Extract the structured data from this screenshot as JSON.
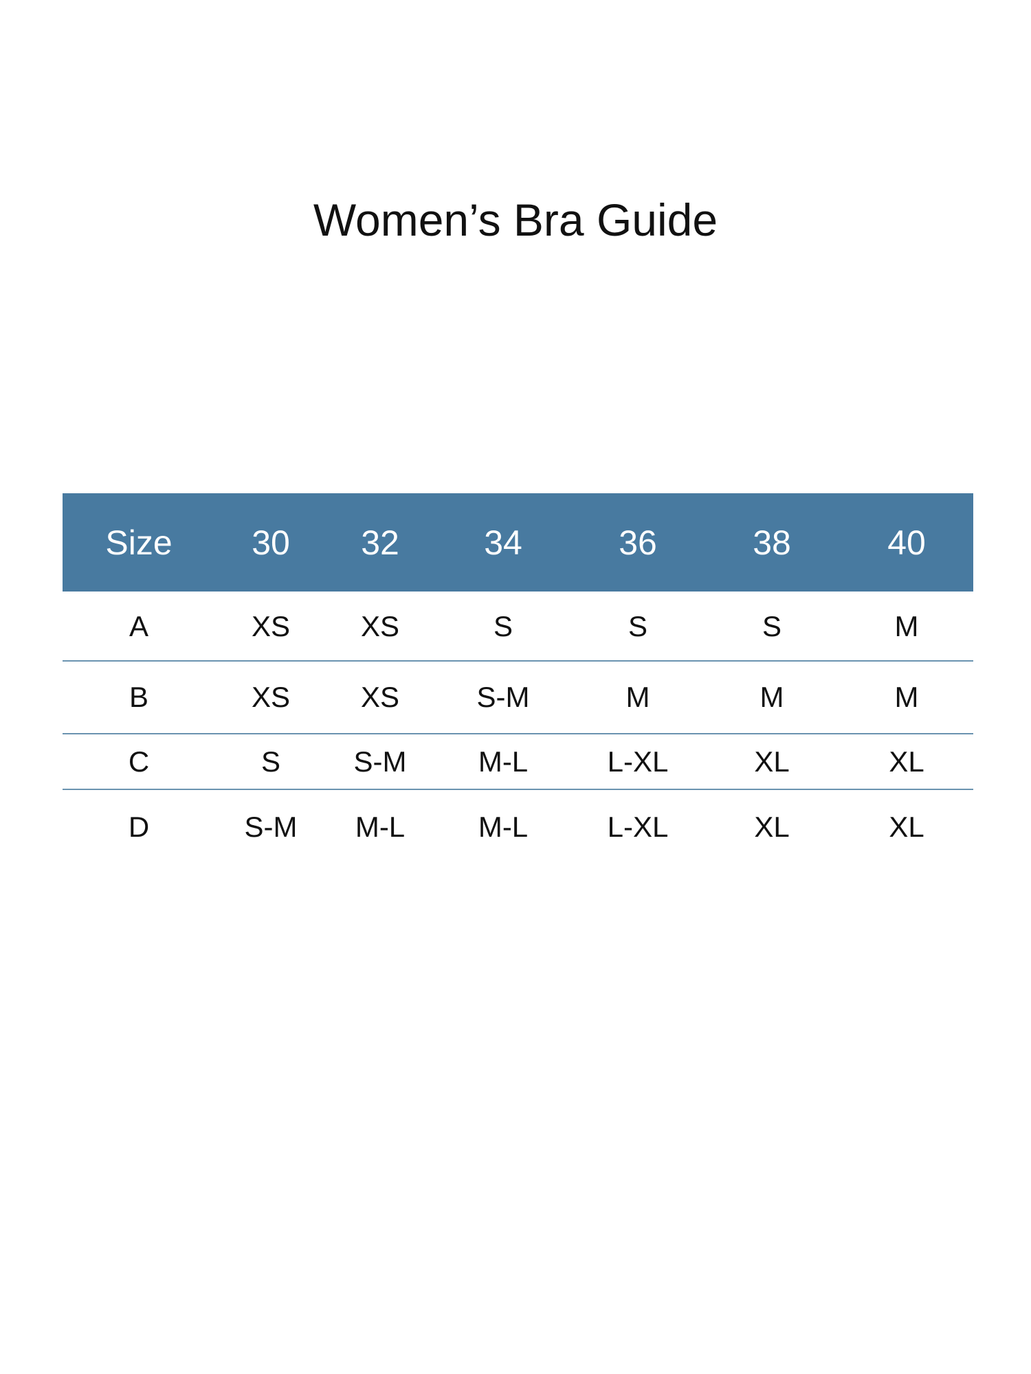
{
  "title": "Women’s Bra Guide",
  "colors": {
    "header_bg": "#487aa0",
    "divider": "#6a93b0",
    "header_text": "#ffffff"
  },
  "table": {
    "headers": [
      "Size",
      "30",
      "32",
      "34",
      "36",
      "38",
      "40"
    ],
    "rows": [
      [
        "A",
        "XS",
        "XS",
        "S",
        "S",
        "S",
        "M"
      ],
      [
        "B",
        "XS",
        "XS",
        "S-M",
        "M",
        "M",
        "M"
      ],
      [
        "C",
        "S",
        "S-M",
        "M-L",
        "L-XL",
        "XL",
        "XL"
      ],
      [
        "D",
        "S-M",
        "M-L",
        "M-L",
        "L-XL",
        "XL",
        "XL"
      ]
    ]
  }
}
